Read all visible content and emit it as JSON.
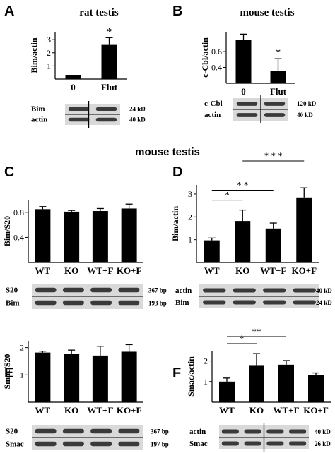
{
  "section_heading": "mouse testis",
  "colors": {
    "bar": "#000000",
    "blot_band": "#3a3a3a",
    "blot_bg": "#d9d9d9",
    "text": "#000000"
  },
  "chart_data": [
    {
      "panel": "A",
      "title": "rat testis",
      "type": "bar",
      "categories": [
        "0",
        "Flut"
      ],
      "values": [
        0.3,
        2.6
      ],
      "errors": [
        0.0,
        0.55
      ],
      "ylabel": "Bim/actin",
      "ylim": [
        0,
        3.6
      ],
      "yticks": [
        1,
        2,
        3
      ],
      "significance": [
        {
          "bar": 1,
          "text": "*"
        }
      ],
      "blot": {
        "rows": [
          "Bim",
          "actin"
        ],
        "sizes": [
          "24 kD",
          "40 kD"
        ]
      }
    },
    {
      "panel": "B",
      "title": "mouse testis",
      "type": "bar",
      "categories": [
        "0",
        "Flut"
      ],
      "values": [
        0.75,
        0.36
      ],
      "errors": [
        0.07,
        0.15
      ],
      "ylabel": "c-Cbl/actin",
      "ylim": [
        0.2,
        0.85
      ],
      "yticks": [
        0.4,
        0.6
      ],
      "significance": [
        {
          "bar": 1,
          "text": "*"
        }
      ],
      "blot": {
        "rows": [
          "c-Cbl",
          "actin"
        ],
        "sizes": [
          "120 kD",
          "40 kD"
        ]
      }
    },
    {
      "panel": "C",
      "type": "bar",
      "categories": [
        "WT",
        "KO",
        "WT+F",
        "KO+F"
      ],
      "values": [
        0.85,
        0.81,
        0.82,
        0.86
      ],
      "errors": [
        0.04,
        0.02,
        0.04,
        0.07
      ],
      "ylabel": "Bim/S20",
      "ylim": [
        0,
        1.0
      ],
      "yticks": [
        0.4,
        0.8
      ],
      "blot": {
        "rows": [
          "S20",
          "Bim"
        ],
        "sizes": [
          "367 bp",
          "193 bp"
        ]
      }
    },
    {
      "panel": "D",
      "type": "bar",
      "categories": [
        "WT",
        "KO",
        "WT+F",
        "KO+F"
      ],
      "values": [
        0.97,
        1.82,
        1.49,
        2.85
      ],
      "errors": [
        0.1,
        0.48,
        0.24,
        0.42
      ],
      "ylabel": "Bim/actin",
      "ylim": [
        0,
        3.4
      ],
      "yticks": [
        1,
        2,
        3
      ],
      "brackets": [
        {
          "from": 0,
          "to": 1,
          "text": "*"
        },
        {
          "from": 0,
          "to": 2,
          "text": "* *"
        },
        {
          "from": 1,
          "to": 3,
          "text": "* * *"
        }
      ],
      "blot": {
        "rows": [
          "actin",
          "Bim"
        ],
        "sizes": [
          "40 kD",
          "24 kD"
        ]
      }
    },
    {
      "panel": "E",
      "type": "bar",
      "categories": [
        "WT",
        "KO",
        "WT+F",
        "KO+F"
      ],
      "values": [
        1.82,
        1.77,
        1.71,
        1.85
      ],
      "errors": [
        0.05,
        0.14,
        0.34,
        0.26
      ],
      "ylabel": "Smac/S20",
      "ylim": [
        0,
        2.25
      ],
      "yticks": [
        1,
        2
      ],
      "blot": {
        "rows": [
          "S20",
          "Smac"
        ],
        "sizes": [
          "367 bp",
          "197 bp"
        ]
      }
    },
    {
      "panel": "F",
      "type": "bar",
      "categories": [
        "WT",
        "KO",
        "WT+F",
        "KO+F"
      ],
      "values": [
        1.0,
        1.8,
        1.82,
        1.32
      ],
      "errors": [
        0.17,
        0.56,
        0.2,
        0.1
      ],
      "ylabel": "Smac/actin",
      "ylim": [
        0,
        2.5
      ],
      "yticks": [
        1,
        2
      ],
      "brackets": [
        {
          "from": 0,
          "to": 1,
          "text": "*"
        },
        {
          "from": 0,
          "to": 2,
          "text": "**"
        }
      ],
      "blot": {
        "rows": [
          "actin",
          "Smac"
        ],
        "sizes": [
          "40 kD",
          "26 kD"
        ]
      }
    }
  ]
}
